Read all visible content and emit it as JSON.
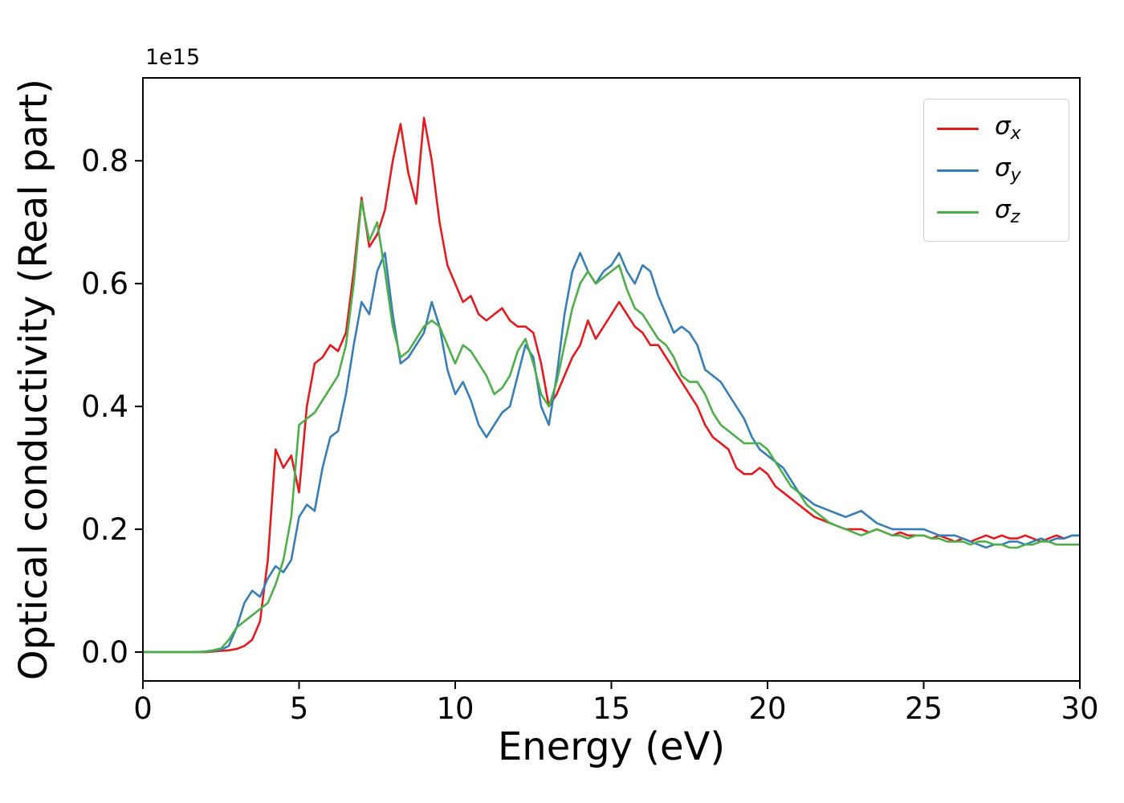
{
  "figure": {
    "background": "#ffffff",
    "axes_edge_color": "#000000",
    "legend_border_color": "#cccccc"
  },
  "chart_data": {
    "type": "line",
    "title": "",
    "xlabel": "Energy (eV)",
    "ylabel": "Optical conductivity (Real part)",
    "y_offset_label": "1e15",
    "xlim": [
      0,
      30
    ],
    "ylim": [
      -0.047,
      0.935
    ],
    "xticks": [
      0,
      5,
      10,
      15,
      20,
      25,
      30
    ],
    "xtick_labels": [
      "0",
      "5",
      "10",
      "15",
      "20",
      "25",
      "30"
    ],
    "yticks": [
      0.0,
      0.2,
      0.4,
      0.6,
      0.8
    ],
    "ytick_labels": [
      "0.0",
      "0.2",
      "0.4",
      "0.6",
      "0.8"
    ],
    "grid": false,
    "legend_position": "upper right",
    "x": [
      0,
      0.25,
      0.5,
      0.75,
      1,
      1.25,
      1.5,
      1.75,
      2,
      2.25,
      2.5,
      2.75,
      3,
      3.25,
      3.5,
      3.75,
      4,
      4.25,
      4.5,
      4.75,
      5,
      5.25,
      5.5,
      5.75,
      6,
      6.25,
      6.5,
      6.75,
      7,
      7.25,
      7.5,
      7.75,
      8,
      8.25,
      8.5,
      8.75,
      9,
      9.25,
      9.5,
      9.75,
      10,
      10.25,
      10.5,
      10.75,
      11,
      11.25,
      11.5,
      11.75,
      12,
      12.25,
      12.5,
      12.75,
      13,
      13.25,
      13.5,
      13.75,
      14,
      14.25,
      14.5,
      14.75,
      15,
      15.25,
      15.5,
      15.75,
      16,
      16.25,
      16.5,
      16.75,
      17,
      17.25,
      17.5,
      17.75,
      18,
      18.25,
      18.5,
      18.75,
      19,
      19.25,
      19.5,
      19.75,
      20,
      20.25,
      20.5,
      20.75,
      21,
      21.25,
      21.5,
      21.75,
      22,
      22.25,
      22.5,
      22.75,
      23,
      23.25,
      23.5,
      23.75,
      24,
      24.25,
      24.5,
      24.75,
      25,
      25.25,
      25.5,
      25.75,
      26,
      26.25,
      26.5,
      26.75,
      27,
      27.25,
      27.5,
      27.75,
      28,
      28.25,
      28.5,
      28.75,
      29,
      29.25,
      29.5,
      29.75,
      30
    ],
    "series": [
      {
        "name": "sigma_x",
        "symbol": "σ",
        "subscript": "x",
        "color": "#e41a1c",
        "values": [
          0,
          0,
          0,
          0,
          0,
          0,
          0,
          0,
          0,
          0.001,
          0.002,
          0.003,
          0.005,
          0.01,
          0.02,
          0.05,
          0.15,
          0.33,
          0.3,
          0.32,
          0.26,
          0.4,
          0.47,
          0.48,
          0.5,
          0.49,
          0.52,
          0.62,
          0.74,
          0.66,
          0.68,
          0.72,
          0.8,
          0.86,
          0.78,
          0.73,
          0.87,
          0.8,
          0.7,
          0.63,
          0.6,
          0.57,
          0.58,
          0.55,
          0.54,
          0.55,
          0.56,
          0.54,
          0.53,
          0.53,
          0.52,
          0.47,
          0.4,
          0.42,
          0.45,
          0.48,
          0.5,
          0.54,
          0.51,
          0.53,
          0.55,
          0.57,
          0.55,
          0.53,
          0.52,
          0.5,
          0.5,
          0.48,
          0.46,
          0.44,
          0.42,
          0.4,
          0.37,
          0.35,
          0.34,
          0.33,
          0.3,
          0.29,
          0.29,
          0.3,
          0.29,
          0.27,
          0.26,
          0.25,
          0.24,
          0.23,
          0.22,
          0.215,
          0.21,
          0.205,
          0.2,
          0.2,
          0.2,
          0.195,
          0.2,
          0.195,
          0.19,
          0.195,
          0.19,
          0.19,
          0.19,
          0.185,
          0.19,
          0.185,
          0.18,
          0.185,
          0.18,
          0.185,
          0.19,
          0.185,
          0.19,
          0.185,
          0.185,
          0.19,
          0.185,
          0.18,
          0.185,
          0.19,
          0.185,
          0.19,
          0.19
        ]
      },
      {
        "name": "sigma_y",
        "symbol": "σ",
        "subscript": "y",
        "color": "#377eb8",
        "values": [
          0,
          0,
          0,
          0,
          0,
          0,
          0,
          0,
          0.001,
          0.002,
          0.004,
          0.01,
          0.04,
          0.08,
          0.1,
          0.09,
          0.12,
          0.14,
          0.13,
          0.15,
          0.22,
          0.24,
          0.23,
          0.3,
          0.35,
          0.36,
          0.42,
          0.5,
          0.57,
          0.55,
          0.62,
          0.65,
          0.55,
          0.47,
          0.48,
          0.5,
          0.52,
          0.57,
          0.53,
          0.46,
          0.42,
          0.44,
          0.41,
          0.37,
          0.35,
          0.37,
          0.39,
          0.4,
          0.45,
          0.5,
          0.48,
          0.4,
          0.37,
          0.45,
          0.55,
          0.62,
          0.65,
          0.62,
          0.6,
          0.62,
          0.63,
          0.65,
          0.62,
          0.6,
          0.63,
          0.62,
          0.58,
          0.55,
          0.52,
          0.53,
          0.52,
          0.5,
          0.46,
          0.45,
          0.44,
          0.42,
          0.4,
          0.38,
          0.35,
          0.33,
          0.32,
          0.31,
          0.3,
          0.28,
          0.26,
          0.25,
          0.24,
          0.235,
          0.23,
          0.225,
          0.22,
          0.225,
          0.23,
          0.22,
          0.21,
          0.205,
          0.2,
          0.2,
          0.2,
          0.2,
          0.2,
          0.195,
          0.19,
          0.19,
          0.19,
          0.185,
          0.18,
          0.175,
          0.17,
          0.175,
          0.175,
          0.18,
          0.18,
          0.175,
          0.18,
          0.185,
          0.18,
          0.185,
          0.185,
          0.19,
          0.19
        ]
      },
      {
        "name": "sigma_z",
        "symbol": "σ",
        "subscript": "z",
        "color": "#4daf4a",
        "values": [
          0,
          0,
          0,
          0,
          0,
          0,
          0,
          0,
          0.001,
          0.003,
          0.006,
          0.02,
          0.04,
          0.05,
          0.06,
          0.07,
          0.08,
          0.11,
          0.15,
          0.22,
          0.37,
          0.38,
          0.39,
          0.41,
          0.43,
          0.45,
          0.5,
          0.6,
          0.735,
          0.67,
          0.7,
          0.62,
          0.53,
          0.48,
          0.49,
          0.51,
          0.53,
          0.54,
          0.53,
          0.5,
          0.47,
          0.5,
          0.49,
          0.47,
          0.45,
          0.42,
          0.43,
          0.45,
          0.49,
          0.51,
          0.47,
          0.42,
          0.4,
          0.44,
          0.5,
          0.56,
          0.6,
          0.62,
          0.6,
          0.61,
          0.62,
          0.63,
          0.59,
          0.56,
          0.55,
          0.53,
          0.51,
          0.5,
          0.48,
          0.45,
          0.44,
          0.44,
          0.42,
          0.39,
          0.37,
          0.36,
          0.35,
          0.34,
          0.34,
          0.34,
          0.33,
          0.31,
          0.29,
          0.27,
          0.26,
          0.24,
          0.23,
          0.22,
          0.21,
          0.205,
          0.2,
          0.195,
          0.19,
          0.195,
          0.2,
          0.195,
          0.19,
          0.19,
          0.185,
          0.19,
          0.19,
          0.185,
          0.185,
          0.18,
          0.18,
          0.18,
          0.175,
          0.18,
          0.18,
          0.175,
          0.175,
          0.17,
          0.17,
          0.175,
          0.175,
          0.18,
          0.18,
          0.175,
          0.175,
          0.175,
          0.175
        ]
      }
    ]
  }
}
